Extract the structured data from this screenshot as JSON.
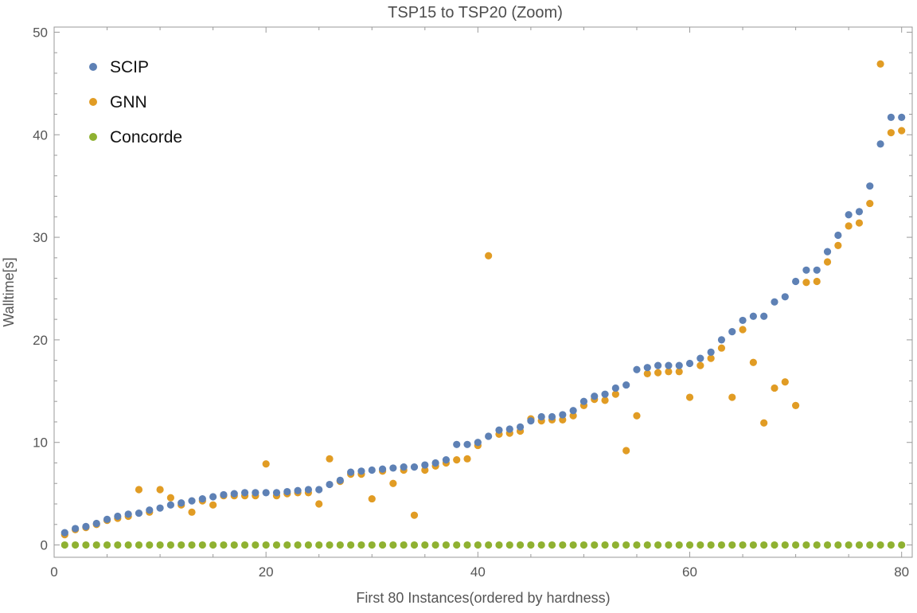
{
  "chart_data": {
    "type": "scatter",
    "title": "TSP15 to TSP20 (Zoom)",
    "xlabel": "First 80 Instances(ordered by hardness)",
    "ylabel": "Walltime[s]",
    "xlim": [
      0,
      81
    ],
    "ylim": [
      -1.2,
      50.5
    ],
    "xticks": [
      0,
      20,
      40,
      60,
      80
    ],
    "yticks": [
      0,
      10,
      20,
      30,
      40,
      50
    ],
    "legend_position": "top-left",
    "grid": false,
    "x": [
      1,
      2,
      3,
      4,
      5,
      6,
      7,
      8,
      9,
      10,
      11,
      12,
      13,
      14,
      15,
      16,
      17,
      18,
      19,
      20,
      21,
      22,
      23,
      24,
      25,
      26,
      27,
      28,
      29,
      30,
      31,
      32,
      33,
      34,
      35,
      36,
      37,
      38,
      39,
      40,
      41,
      42,
      43,
      44,
      45,
      46,
      47,
      48,
      49,
      50,
      51,
      52,
      53,
      54,
      55,
      56,
      57,
      58,
      59,
      60,
      61,
      62,
      63,
      64,
      65,
      66,
      67,
      68,
      69,
      70,
      71,
      72,
      73,
      74,
      75,
      76,
      77,
      78,
      79,
      80
    ],
    "series": [
      {
        "name": "SCIP",
        "color": "#5e81b5",
        "values": [
          1.2,
          1.6,
          1.8,
          2.1,
          2.5,
          2.8,
          3.0,
          3.1,
          3.4,
          3.6,
          3.9,
          4.1,
          4.3,
          4.5,
          4.7,
          4.9,
          5.0,
          5.1,
          5.1,
          5.1,
          5.1,
          5.2,
          5.3,
          5.4,
          5.4,
          5.9,
          6.3,
          7.1,
          7.2,
          7.3,
          7.4,
          7.5,
          7.6,
          7.6,
          7.8,
          8.0,
          8.3,
          9.8,
          9.8,
          10.0,
          10.6,
          11.2,
          11.3,
          11.5,
          12.1,
          12.5,
          12.5,
          12.7,
          13.1,
          14.0,
          14.5,
          14.7,
          15.3,
          15.6,
          17.1,
          17.3,
          17.5,
          17.5,
          17.5,
          17.7,
          18.2,
          18.8,
          20.0,
          20.8,
          21.9,
          22.3,
          22.3,
          23.7,
          24.2,
          25.7,
          26.8,
          26.8,
          28.6,
          30.2,
          32.2,
          32.5,
          35.0,
          39.1,
          41.7,
          41.7
        ]
      },
      {
        "name": "GNN",
        "color": "#e19c24",
        "values": [
          1.0,
          1.5,
          1.7,
          2.0,
          2.4,
          2.6,
          2.8,
          5.4,
          3.2,
          5.4,
          4.6,
          3.9,
          3.2,
          4.3,
          3.9,
          4.8,
          4.8,
          4.8,
          4.8,
          7.9,
          4.8,
          5.0,
          5.1,
          5.1,
          4.0,
          8.4,
          6.2,
          6.9,
          6.9,
          4.5,
          7.2,
          6.0,
          7.3,
          2.9,
          7.3,
          7.7,
          8.0,
          8.3,
          8.4,
          9.7,
          28.2,
          10.8,
          10.9,
          11.1,
          12.3,
          12.1,
          12.2,
          12.2,
          12.6,
          13.6,
          14.2,
          14.1,
          14.7,
          9.2,
          12.6,
          16.7,
          16.8,
          16.9,
          16.9,
          14.4,
          17.5,
          18.2,
          19.2,
          14.4,
          21.0,
          17.8,
          11.9,
          15.3,
          15.9,
          13.6,
          25.6,
          25.7,
          27.6,
          29.2,
          31.1,
          31.4,
          33.3,
          46.9,
          40.2,
          40.4
        ]
      },
      {
        "name": "Concorde",
        "color": "#8fb131",
        "values": [
          0,
          0,
          0,
          0,
          0,
          0,
          0,
          0,
          0,
          0,
          0,
          0,
          0,
          0,
          0,
          0,
          0,
          0,
          0,
          0,
          0,
          0,
          0,
          0,
          0,
          0,
          0,
          0,
          0,
          0,
          0,
          0,
          0,
          0,
          0,
          0,
          0,
          0,
          0,
          0,
          0,
          0,
          0,
          0,
          0,
          0,
          0,
          0,
          0,
          0,
          0,
          0,
          0,
          0,
          0,
          0,
          0,
          0,
          0,
          0,
          0,
          0,
          0,
          0,
          0,
          0,
          0,
          0,
          0,
          0,
          0,
          0,
          0,
          0,
          0,
          0,
          0,
          0,
          0,
          0
        ]
      }
    ]
  }
}
